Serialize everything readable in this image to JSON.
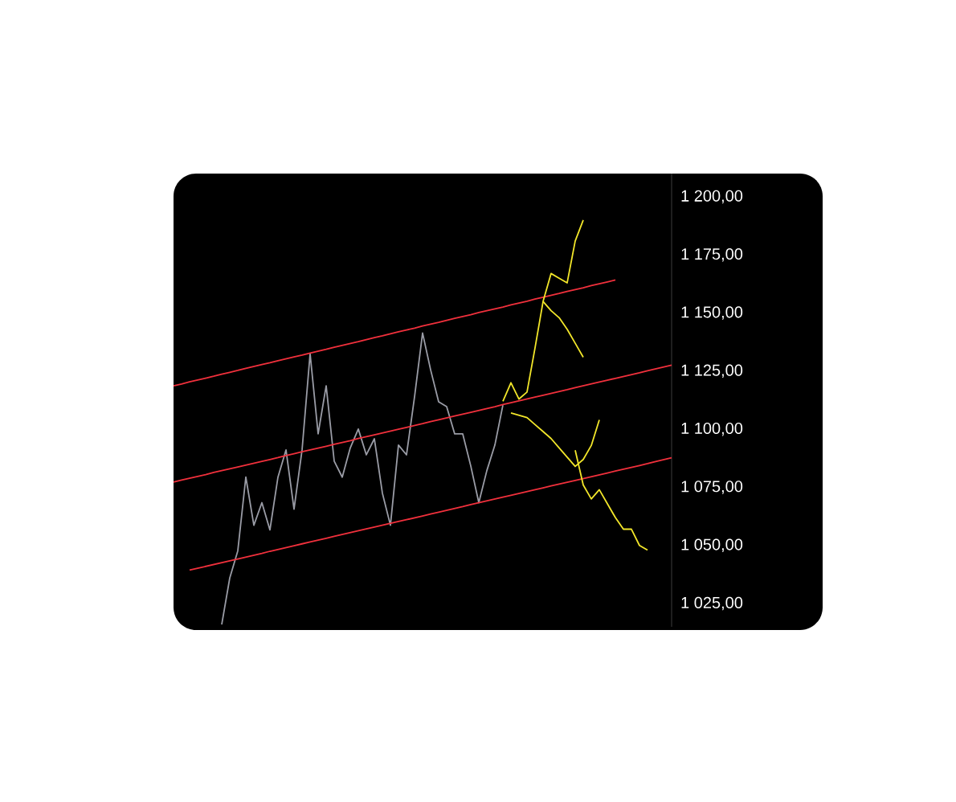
{
  "chart_data": {
    "type": "line",
    "marker": "none",
    "line_style": "solid",
    "tick_labels": "y",
    "categories": [
      null,
      null,
      null,
      null,
      null,
      null,
      null,
      null,
      null,
      null,
      null,
      null,
      null,
      null,
      null,
      null,
      null,
      null,
      null,
      null,
      null,
      null,
      null,
      null,
      null,
      null,
      null,
      null,
      null,
      null,
      null,
      null,
      null,
      null,
      null,
      null,
      null,
      null,
      null,
      null,
      null,
      null,
      null,
      null,
      null,
      null,
      null,
      null,
      null,
      null,
      null,
      null,
      null,
      null,
      null,
      null,
      null,
      null,
      null,
      null,
      null,
      null,
      null
    ],
    "ylim": [
      1015,
      1210
    ],
    "yticks": [
      {
        "value": 1025,
        "label": "1 025,00"
      },
      {
        "value": 1050,
        "label": "1 050,00"
      },
      {
        "value": 1075,
        "label": "1 075,00"
      },
      {
        "value": 1100,
        "label": "1 100,00"
      },
      {
        "value": 1125,
        "label": "1 125,00"
      },
      {
        "value": 1150,
        "label": "1 150,00"
      },
      {
        "value": 1175,
        "label": "1 175,00"
      },
      {
        "value": 1200,
        "label": "1 200,00"
      }
    ],
    "series": [
      {
        "color": "#9a9ca6",
        "values": [
          null,
          null,
          null,
          null,
          null,
          null,
          1016,
          1036,
          1047.7,
          1079.4,
          1058.7,
          1068.4,
          1056.7,
          1079.4,
          1091.1,
          1065.6,
          1091.1,
          1132.5,
          1098,
          1118.7,
          1086.3,
          1079.4,
          1092,
          1100.1,
          1089,
          1095.9,
          1072.5,
          1058.7,
          1093.2,
          1089,
          1113.9,
          1141.4,
          1125.6,
          1111.8,
          1109.7,
          1098,
          1098,
          1084.2,
          1068.4,
          1082.2,
          1093.2,
          1110.4,
          null,
          null,
          null,
          null,
          null,
          null,
          null,
          null,
          null,
          null,
          null,
          null,
          null,
          null,
          null,
          null,
          null,
          null,
          null,
          null,
          null
        ]
      },
      {
        "color": "#f0303c",
        "values": [
          1118.7,
          1119.5,
          1120.4,
          1121.2,
          1122.0,
          1122.8,
          1123.7,
          1124.5,
          1125.3,
          1126.2,
          1127.0,
          1127.8,
          1128.6,
          1129.5,
          1130.3,
          1131.1,
          1131.9,
          1132.8,
          1133.6,
          1134.4,
          1135.3,
          1136.1,
          1136.9,
          1137.7,
          1138.6,
          1139.4,
          1140.2,
          1141.1,
          1141.9,
          1142.7,
          1143.5,
          1144.4,
          1145.2,
          1146.0,
          1146.9,
          1147.7,
          1148.5,
          1149.3,
          1150.2,
          1151.0,
          1151.8,
          1152.6,
          1153.5,
          1154.3,
          1155.1,
          1156.0,
          1156.8,
          1157.6,
          1158.4,
          1159.3,
          1160.1,
          1160.9,
          1161.8,
          1162.6,
          1163.4,
          1164.2,
          null,
          null,
          null,
          null,
          null,
          null,
          null
        ]
      },
      {
        "color": "#f0303c",
        "values": [
          1077.3,
          1078.1,
          1078.9,
          1079.7,
          1080.5,
          1081.4,
          1082.2,
          1083.0,
          1083.8,
          1084.6,
          1085.4,
          1086.2,
          1087.0,
          1087.8,
          1088.7,
          1089.5,
          1090.3,
          1091.1,
          1091.9,
          1092.7,
          1093.5,
          1094.3,
          1095.1,
          1096.0,
          1096.8,
          1097.6,
          1098.4,
          1099.2,
          1100.0,
          1100.8,
          1101.6,
          1102.4,
          1103.3,
          1104.1,
          1104.9,
          1105.7,
          1106.5,
          1107.3,
          1108.1,
          1108.9,
          1109.7,
          1110.6,
          1111.4,
          1112.2,
          1113.0,
          1113.8,
          1114.6,
          1115.4,
          1116.2,
          1117.0,
          1117.9,
          1118.7,
          1119.5,
          1120.3,
          1121.1,
          1121.9,
          1122.7,
          1123.5,
          1124.3,
          1125.2,
          1126.0,
          1126.8,
          1127.6
        ]
      },
      {
        "color": "#f0303c",
        "values": [
          null,
          null,
          1039.4,
          1040.2,
          1041.0,
          1041.8,
          1042.6,
          1043.4,
          1044.2,
          1045.0,
          1045.8,
          1046.6,
          1047.5,
          1048.3,
          1049.1,
          1049.9,
          1050.7,
          1051.5,
          1052.3,
          1053.1,
          1053.9,
          1054.7,
          1055.5,
          1056.3,
          1057.1,
          1057.9,
          1058.7,
          1059.5,
          1060.3,
          1061.1,
          1061.9,
          1062.7,
          1063.5,
          1064.3,
          1065.1,
          1065.9,
          1066.7,
          1067.6,
          1068.4,
          1069.2,
          1070.0,
          1070.8,
          1071.6,
          1072.4,
          1073.2,
          1074.0,
          1074.8,
          1075.6,
          1076.4,
          1077.2,
          1078.0,
          1078.8,
          1079.6,
          1080.4,
          1081.2,
          1082.0,
          1082.8,
          1083.6,
          1084.4,
          1085.2,
          1086.1,
          1086.9,
          1087.7
        ]
      },
      {
        "color": "#f2e62a",
        "values": [
          null,
          null,
          null,
          null,
          null,
          null,
          null,
          null,
          null,
          null,
          null,
          null,
          null,
          null,
          null,
          null,
          null,
          null,
          null,
          null,
          null,
          null,
          null,
          null,
          null,
          null,
          null,
          null,
          null,
          null,
          null,
          null,
          null,
          null,
          null,
          null,
          null,
          null,
          null,
          null,
          null,
          1112,
          1120,
          1113,
          1116,
          1135,
          1155,
          1167,
          1165,
          1163,
          1181,
          1190,
          null,
          null,
          null,
          null,
          null,
          null,
          null,
          null,
          null,
          null,
          null
        ]
      },
      {
        "color": "#f2e62a",
        "values": [
          null,
          null,
          null,
          null,
          null,
          null,
          null,
          null,
          null,
          null,
          null,
          null,
          null,
          null,
          null,
          null,
          null,
          null,
          null,
          null,
          null,
          null,
          null,
          null,
          null,
          null,
          null,
          null,
          null,
          null,
          null,
          null,
          null,
          null,
          null,
          null,
          null,
          null,
          null,
          null,
          null,
          null,
          null,
          null,
          null,
          null,
          1155,
          1151,
          1148,
          1143,
          1137,
          1131,
          null,
          null,
          null,
          null,
          null,
          null,
          null,
          null,
          null,
          null,
          null
        ]
      },
      {
        "color": "#f2e62a",
        "values": [
          null,
          null,
          null,
          null,
          null,
          null,
          null,
          null,
          null,
          null,
          null,
          null,
          null,
          null,
          null,
          null,
          null,
          null,
          null,
          null,
          null,
          null,
          null,
          null,
          null,
          null,
          null,
          null,
          null,
          null,
          null,
          null,
          null,
          null,
          null,
          null,
          null,
          null,
          null,
          null,
          null,
          null,
          1107,
          1106,
          1105,
          1102,
          1099,
          1096,
          1092,
          1088,
          1084,
          1087,
          1093,
          1104,
          null,
          null,
          null,
          null,
          null,
          null,
          null,
          null,
          null
        ]
      },
      {
        "color": "#f2e62a",
        "values": [
          null,
          null,
          null,
          null,
          null,
          null,
          null,
          null,
          null,
          null,
          null,
          null,
          null,
          null,
          null,
          null,
          null,
          null,
          null,
          null,
          null,
          null,
          null,
          null,
          null,
          null,
          null,
          null,
          null,
          null,
          null,
          null,
          null,
          null,
          null,
          null,
          null,
          null,
          null,
          null,
          null,
          null,
          null,
          null,
          null,
          null,
          null,
          null,
          null,
          null,
          1091,
          1076,
          1070,
          1074,
          1068,
          1062,
          1057,
          1057,
          1050,
          1048,
          null,
          null,
          null
        ]
      }
    ]
  }
}
